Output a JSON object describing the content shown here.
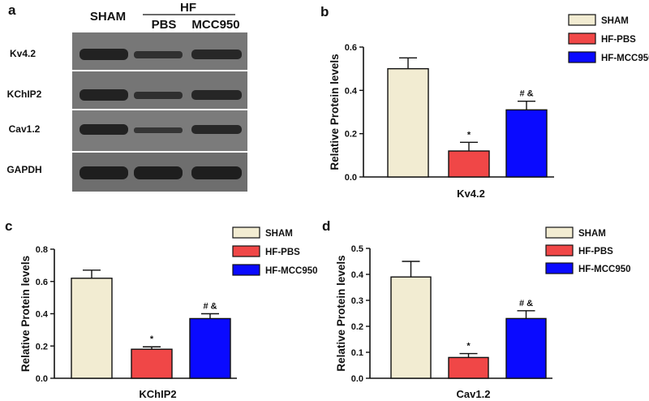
{
  "panel_a": {
    "letter": "a",
    "lanes": [
      "SHAM",
      "PBS",
      "MCC950"
    ],
    "group_label": "HF",
    "rows": [
      "Kv4.2",
      "KChIP2",
      "Cav1.2",
      "GAPDH"
    ]
  },
  "legend": {
    "items": [
      {
        "label": "SHAM",
        "color": "#f2ecd2"
      },
      {
        "label": "HF-PBS",
        "color": "#f04747"
      },
      {
        "label": "HF-MCC950",
        "color": "#0a0aff"
      }
    ]
  },
  "chart_data": [
    {
      "type": "bar",
      "panel": "b",
      "categories": [
        "SHAM",
        "HF-PBS",
        "HF-MCC950"
      ],
      "values": [
        0.5,
        0.12,
        0.31
      ],
      "errors": [
        0.05,
        0.04,
        0.04
      ],
      "annotations": [
        "",
        "*",
        "# &"
      ],
      "xlabel": "Kv4.2",
      "ylabel": "Relative Protein levels",
      "ylim": [
        0,
        0.6
      ],
      "yticks": [
        "0.0",
        "0.2",
        "0.4",
        "0.6"
      ]
    },
    {
      "type": "bar",
      "panel": "c",
      "categories": [
        "SHAM",
        "HF-PBS",
        "HF-MCC950"
      ],
      "values": [
        0.62,
        0.18,
        0.37
      ],
      "errors": [
        0.05,
        0.015,
        0.03
      ],
      "annotations": [
        "",
        "*",
        "# &"
      ],
      "xlabel": "KChIP2",
      "ylabel": "Relative Protein levels",
      "ylim": [
        0,
        0.8
      ],
      "yticks": [
        "0.0",
        "0.2",
        "0.4",
        "0.6",
        "0.8"
      ]
    },
    {
      "type": "bar",
      "panel": "d",
      "categories": [
        "SHAM",
        "HF-PBS",
        "HF-MCC950"
      ],
      "values": [
        0.39,
        0.08,
        0.23
      ],
      "errors": [
        0.06,
        0.015,
        0.03
      ],
      "annotations": [
        "",
        "*",
        "# &"
      ],
      "xlabel": "Cav1.2",
      "ylabel": "Relative Protein levels",
      "ylim": [
        0,
        0.5
      ],
      "yticks": [
        "0.0",
        "0.1",
        "0.2",
        "0.3",
        "0.4",
        "0.5"
      ]
    }
  ]
}
